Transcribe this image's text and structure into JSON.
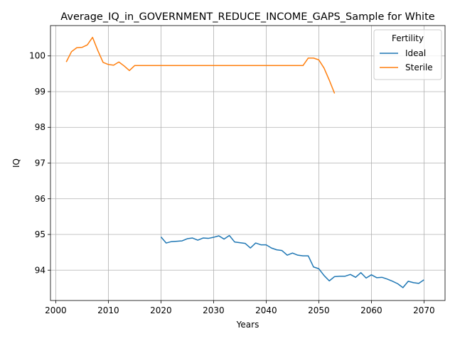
{
  "chart_data": {
    "type": "line",
    "title": "Average_IQ_in_GOVERNMENT_REDUCE_INCOME_GAPS_Sample for White",
    "xlabel": "Years",
    "ylabel": "IQ",
    "xlim": [
      1999,
      2074
    ],
    "ylim": [
      93.15,
      100.85
    ],
    "xticks": [
      2000,
      2010,
      2020,
      2030,
      2040,
      2050,
      2060,
      2070
    ],
    "yticks": [
      94,
      95,
      96,
      97,
      98,
      99,
      100
    ],
    "grid": true,
    "legend": {
      "title": "Fertility",
      "placement": "top-right"
    },
    "series": [
      {
        "name": "Ideal",
        "color": "#1f77b4",
        "x": [
          2020,
          2021,
          2022,
          2023,
          2024,
          2025,
          2026,
          2027,
          2028,
          2029,
          2030,
          2031,
          2032,
          2033,
          2034,
          2035,
          2036,
          2037,
          2038,
          2039,
          2040,
          2041,
          2042,
          2043,
          2044,
          2045,
          2046,
          2047,
          2048,
          2049,
          2050,
          2051,
          2052,
          2053,
          2054,
          2055,
          2056,
          2057,
          2058,
          2059,
          2060,
          2061,
          2062,
          2063,
          2064,
          2065,
          2066,
          2067,
          2068,
          2069,
          2070
        ],
        "y": [
          94.93,
          94.76,
          94.8,
          94.81,
          94.82,
          94.88,
          94.9,
          94.84,
          94.9,
          94.89,
          94.92,
          94.96,
          94.87,
          94.97,
          94.79,
          94.77,
          94.75,
          94.62,
          94.76,
          94.71,
          94.71,
          94.62,
          94.57,
          94.55,
          94.42,
          94.48,
          94.42,
          94.4,
          94.4,
          94.09,
          94.04,
          93.85,
          93.7,
          93.82,
          93.83,
          93.83,
          93.88,
          93.8,
          93.93,
          93.78,
          93.87,
          93.79,
          93.8,
          93.75,
          93.69,
          93.62,
          93.51,
          93.69,
          93.65,
          93.63,
          93.73
        ]
      },
      {
        "name": "Sterile",
        "color": "#ff7f0e",
        "x": [
          2002,
          2003,
          2004,
          2005,
          2006,
          2007,
          2008,
          2009,
          2010,
          2011,
          2012,
          2013,
          2014,
          2015,
          2016,
          2017,
          2018,
          2019,
          2020,
          2021,
          2022,
          2023,
          2024,
          2025,
          2026,
          2027,
          2028,
          2029,
          2030,
          2031,
          2032,
          2033,
          2034,
          2035,
          2036,
          2037,
          2038,
          2039,
          2040,
          2041,
          2042,
          2043,
          2044,
          2045,
          2046,
          2047,
          2048,
          2049,
          2050,
          2051,
          2052,
          2053
        ],
        "y": [
          99.83,
          100.12,
          100.23,
          100.24,
          100.31,
          100.52,
          100.15,
          99.82,
          99.76,
          99.74,
          99.83,
          99.72,
          99.59,
          99.73,
          99.73,
          99.73,
          99.73,
          99.73,
          99.73,
          99.73,
          99.73,
          99.73,
          99.73,
          99.73,
          99.73,
          99.73,
          99.73,
          99.73,
          99.73,
          99.73,
          99.73,
          99.73,
          99.73,
          99.73,
          99.73,
          99.73,
          99.73,
          99.73,
          99.73,
          99.73,
          99.73,
          99.73,
          99.73,
          99.73,
          99.73,
          99.73,
          99.94,
          99.94,
          99.89,
          99.66,
          99.32,
          98.95
        ]
      }
    ]
  }
}
